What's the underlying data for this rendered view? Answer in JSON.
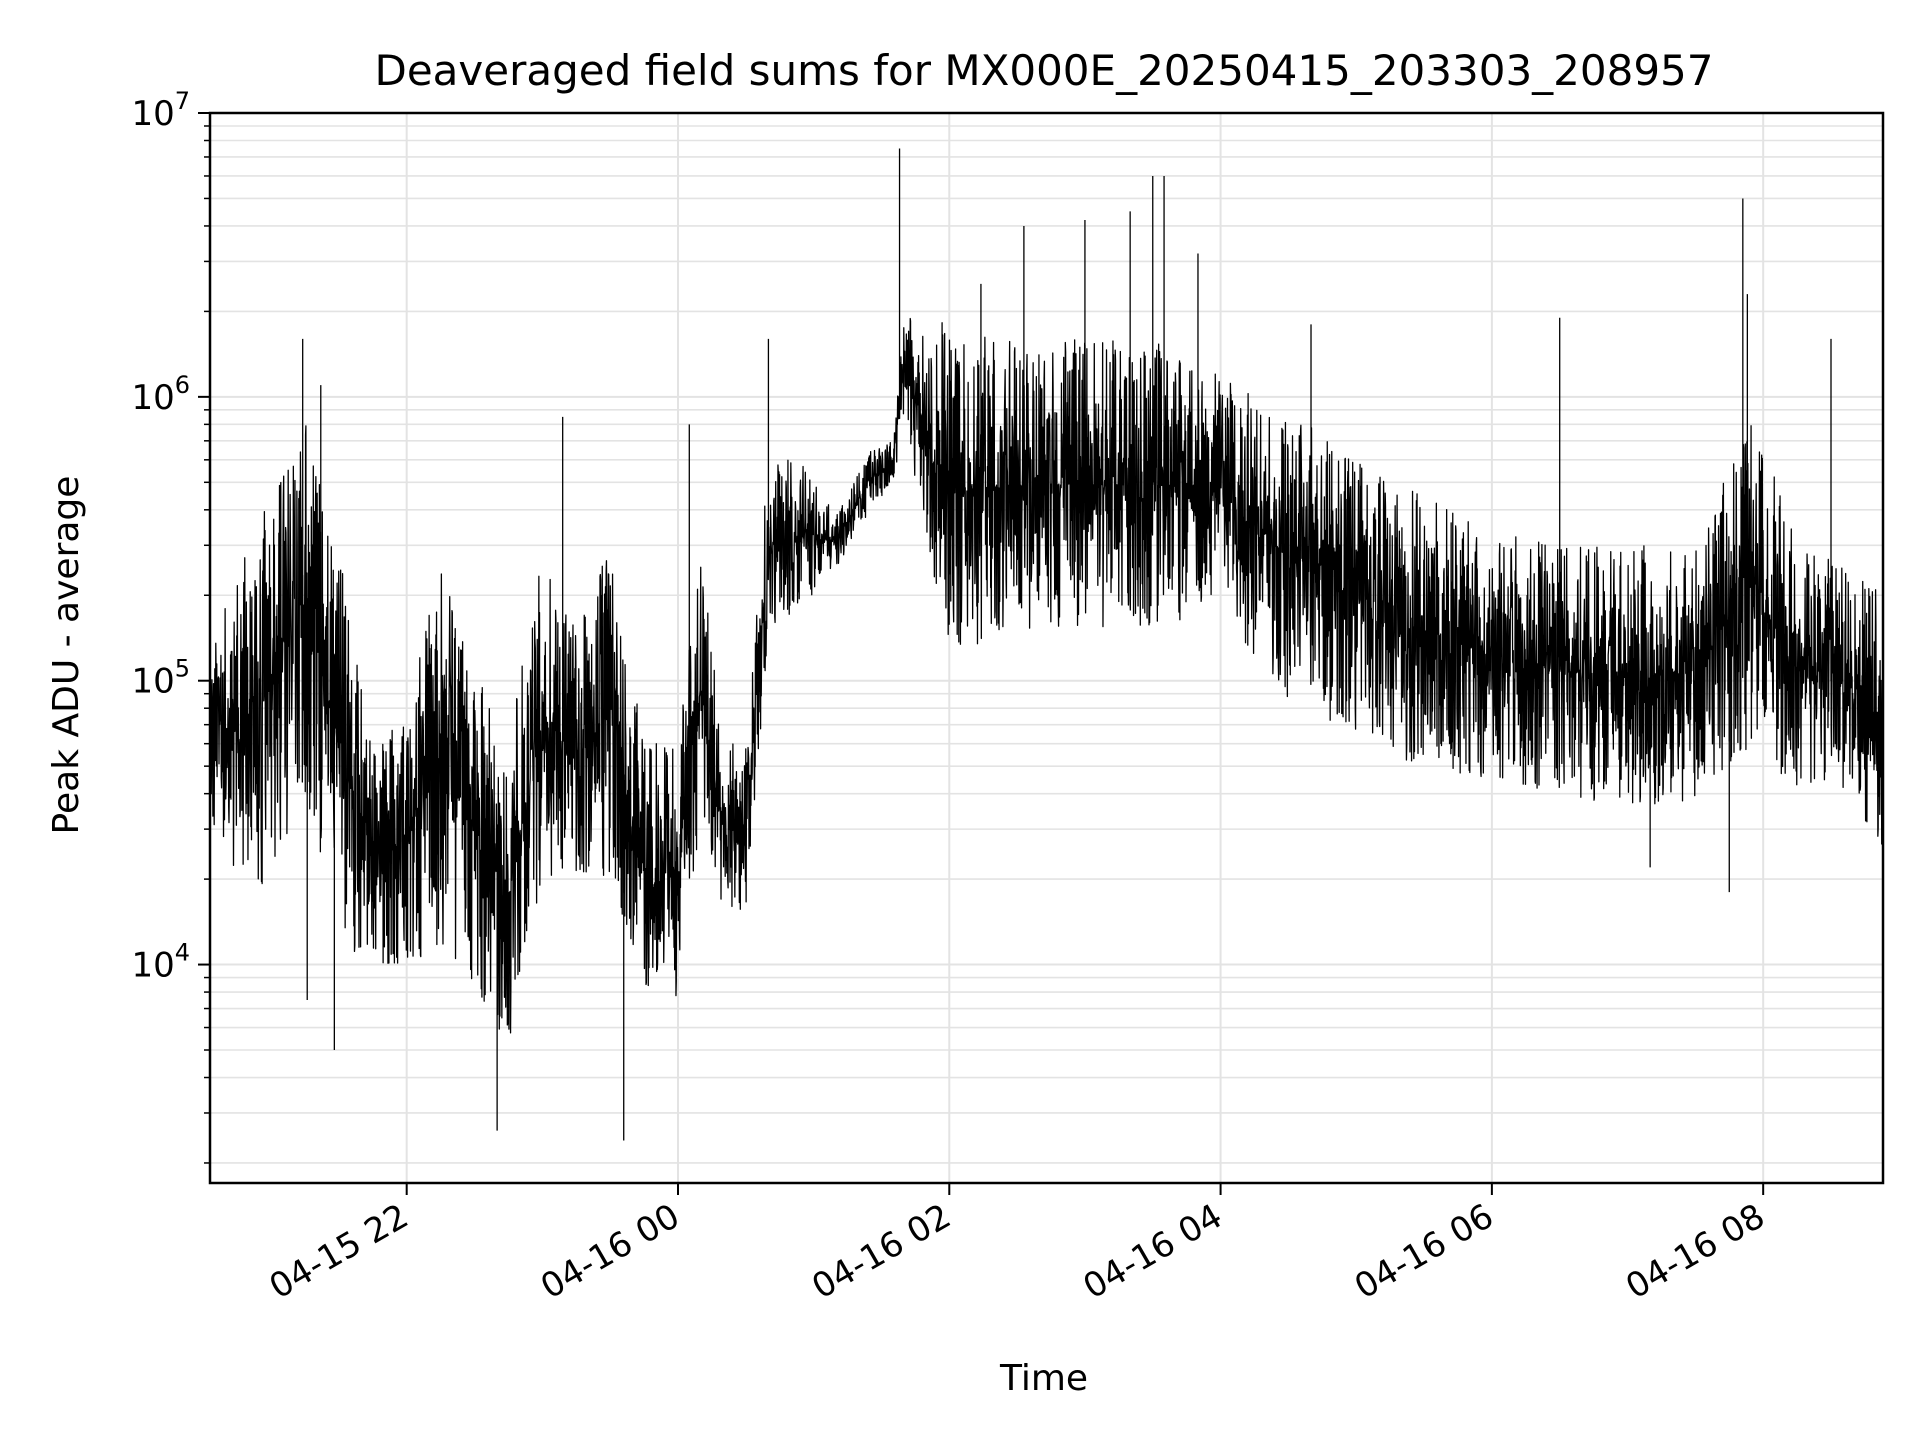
{
  "chart_data": {
    "type": "line",
    "title": "Deaveraged field sums for MX000E_20250415_203303_208957",
    "xlabel": "Time",
    "ylabel": "Peak ADU - average",
    "yscale": "log",
    "ylim": [
      1700,
      10000000
    ],
    "xlim": [
      "2025-04-15 20:33",
      "2025-04-16 08:53"
    ],
    "grid": true,
    "color": "#000000",
    "x_ticks": [
      {
        "t": "2025-04-15 22:00",
        "label": "04-15 22"
      },
      {
        "t": "2025-04-16 00:00",
        "label": "04-16 00"
      },
      {
        "t": "2025-04-16 02:00",
        "label": "04-16 02"
      },
      {
        "t": "2025-04-16 04:00",
        "label": "04-16 04"
      },
      {
        "t": "2025-04-16 06:00",
        "label": "04-16 06"
      },
      {
        "t": "2025-04-16 08:00",
        "label": "04-16 08"
      }
    ],
    "y_ticks": [
      {
        "value": 10000,
        "base": "10",
        "exp": "4"
      },
      {
        "value": 100000,
        "base": "10",
        "exp": "5"
      },
      {
        "value": 1000000,
        "base": "10",
        "exp": "6"
      },
      {
        "value": 10000000,
        "base": "10",
        "exp": "7"
      }
    ],
    "series": [
      {
        "style": "dense-noisy",
        "envelope": [
          {
            "x": "2025-04-15 20:33",
            "low": 30000,
            "high": 120000
          },
          {
            "x": "2025-04-15 20:45",
            "low": 20000,
            "high": 250000
          },
          {
            "x": "2025-04-15 21:00",
            "low": 18000,
            "high": 450000
          },
          {
            "x": "2025-04-15 21:15",
            "low": 40000,
            "high": 900000
          },
          {
            "x": "2025-04-15 21:30",
            "low": 12000,
            "high": 300000
          },
          {
            "x": "2025-04-15 21:45",
            "low": 10000,
            "high": 60000
          },
          {
            "x": "2025-04-15 22:00",
            "low": 9000,
            "high": 80000
          },
          {
            "x": "2025-04-15 22:15",
            "low": 12000,
            "high": 250000
          },
          {
            "x": "2025-04-15 22:30",
            "low": 8000,
            "high": 120000
          },
          {
            "x": "2025-04-15 22:45",
            "low": 5000,
            "high": 60000
          },
          {
            "x": "2025-04-15 23:00",
            "low": 20000,
            "high": 300000
          },
          {
            "x": "2025-04-15 23:15",
            "low": 20000,
            "high": 150000
          },
          {
            "x": "2025-04-15 23:30",
            "low": 20000,
            "high": 300000
          },
          {
            "x": "2025-04-15 23:45",
            "low": 8000,
            "high": 60000
          },
          {
            "x": "2025-04-16 00:00",
            "low": 7000,
            "high": 60000
          },
          {
            "x": "2025-04-16 00:10",
            "low": 30000,
            "high": 300000
          },
          {
            "x": "2025-04-16 00:20",
            "low": 15000,
            "high": 60000
          },
          {
            "x": "2025-04-16 00:30",
            "low": 15000,
            "high": 60000
          },
          {
            "x": "2025-04-16 00:40",
            "low": 150000,
            "high": 600000
          },
          {
            "x": "2025-04-16 00:55",
            "low": 180000,
            "high": 600000
          },
          {
            "x": "2025-04-16 01:10",
            "low": 250000,
            "high": 380000
          },
          {
            "x": "2025-04-16 01:25",
            "low": 400000,
            "high": 650000
          },
          {
            "x": "2025-04-16 01:35",
            "low": 500000,
            "high": 700000
          },
          {
            "x": "2025-04-16 01:40",
            "low": 800000,
            "high": 2000000
          },
          {
            "x": "2025-04-16 02:00",
            "low": 120000,
            "high": 1800000
          },
          {
            "x": "2025-04-16 02:30",
            "low": 150000,
            "high": 1600000
          },
          {
            "x": "2025-04-16 03:00",
            "low": 150000,
            "high": 1600000
          },
          {
            "x": "2025-04-16 03:30",
            "low": 150000,
            "high": 1600000
          },
          {
            "x": "2025-04-16 04:00",
            "low": 180000,
            "high": 1200000
          },
          {
            "x": "2025-04-16 04:30",
            "low": 80000,
            "high": 900000
          },
          {
            "x": "2025-04-16 05:00",
            "low": 60000,
            "high": 600000
          },
          {
            "x": "2025-04-16 05:30",
            "low": 50000,
            "high": 450000
          },
          {
            "x": "2025-04-16 06:00",
            "low": 45000,
            "high": 350000
          },
          {
            "x": "2025-04-16 06:30",
            "low": 40000,
            "high": 300000
          },
          {
            "x": "2025-04-16 07:00",
            "low": 35000,
            "high": 300000
          },
          {
            "x": "2025-04-16 07:30",
            "low": 38000,
            "high": 300000
          },
          {
            "x": "2025-04-16 07:55",
            "low": 60000,
            "high": 900000
          },
          {
            "x": "2025-04-16 08:15",
            "low": 40000,
            "high": 300000
          },
          {
            "x": "2025-04-16 08:40",
            "low": 35000,
            "high": 250000
          },
          {
            "x": "2025-04-16 08:53",
            "low": 25000,
            "high": 200000
          }
        ],
        "spikes": [
          {
            "x": "2025-04-15 21:14",
            "y": 1600000
          },
          {
            "x": "2025-04-15 21:22",
            "y": 1100000
          },
          {
            "x": "2025-04-15 21:16",
            "y": 7500
          },
          {
            "x": "2025-04-15 21:28",
            "y": 5000
          },
          {
            "x": "2025-04-15 22:40",
            "y": 2600
          },
          {
            "x": "2025-04-15 23:09",
            "y": 850000
          },
          {
            "x": "2025-04-15 23:36",
            "y": 2400
          },
          {
            "x": "2025-04-16 00:05",
            "y": 800000
          },
          {
            "x": "2025-04-16 00:40",
            "y": 1600000
          },
          {
            "x": "2025-04-16 01:38",
            "y": 7500000
          },
          {
            "x": "2025-04-16 02:14",
            "y": 2500000
          },
          {
            "x": "2025-04-16 02:33",
            "y": 4000000
          },
          {
            "x": "2025-04-16 03:00",
            "y": 4200000
          },
          {
            "x": "2025-04-16 03:20",
            "y": 4500000
          },
          {
            "x": "2025-04-16 03:30",
            "y": 6000000
          },
          {
            "x": "2025-04-16 03:35",
            "y": 6000000
          },
          {
            "x": "2025-04-16 03:50",
            "y": 3200000
          },
          {
            "x": "2025-04-16 04:40",
            "y": 1800000
          },
          {
            "x": "2025-04-16 06:30",
            "y": 1900000
          },
          {
            "x": "2025-04-16 07:51",
            "y": 5000000
          },
          {
            "x": "2025-04-16 07:53",
            "y": 2300000
          },
          {
            "x": "2025-04-16 08:30",
            "y": 1600000
          },
          {
            "x": "2025-04-16 07:10",
            "y": 22000
          },
          {
            "x": "2025-04-16 07:45",
            "y": 18000
          }
        ]
      }
    ]
  }
}
